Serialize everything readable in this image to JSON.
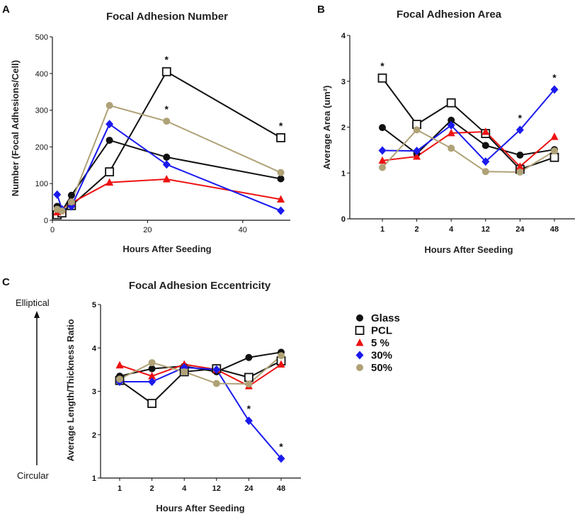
{
  "colors": {
    "Glass": "#111111",
    "PCL": "#111111",
    "5 %": "#ee1111",
    "30%": "#1a1aee",
    "50%": "#b0a277"
  },
  "legend": {
    "items": [
      "Glass",
      "PCL",
      "5 %",
      "30%",
      "50%"
    ]
  },
  "side_labels": {
    "top": "Elliptical",
    "bottom": "Circular"
  },
  "chart_data": [
    {
      "panel": "A",
      "type": "line",
      "title": "Focal Adhesion Number",
      "xlabel": "Hours After Seeding",
      "ylabel": "Number (Focal Adhesions/Cell)",
      "xlim": [
        0,
        50
      ],
      "ylim": [
        0,
        500
      ],
      "xticks": [
        "0",
        "20",
        "40"
      ],
      "yticks": [
        "0",
        "100",
        "200",
        "300",
        "400",
        "500"
      ],
      "series": [
        {
          "name": "Glass",
          "x": [
            1,
            2,
            4,
            12,
            24,
            48
          ],
          "values": [
            38,
            25,
            68,
            218,
            172,
            113
          ]
        },
        {
          "name": "PCL",
          "x": [
            1,
            2,
            4,
            12,
            24,
            48
          ],
          "values": [
            15,
            20,
            40,
            132,
            405,
            225
          ]
        },
        {
          "name": "5 %",
          "x": [
            1,
            2,
            4,
            12,
            24,
            48
          ],
          "values": [
            22,
            30,
            47,
            103,
            112,
            57
          ]
        },
        {
          "name": "30%",
          "x": [
            1,
            2,
            4,
            12,
            24,
            48
          ],
          "values": [
            70,
            30,
            38,
            262,
            152,
            26
          ]
        },
        {
          "name": "50%",
          "x": [
            1,
            2,
            4,
            12,
            24,
            48
          ],
          "values": [
            30,
            25,
            50,
            313,
            270,
            130
          ]
        }
      ],
      "annotations": [
        {
          "text": "*",
          "x": 24,
          "y": 405
        },
        {
          "text": "*",
          "x": 24,
          "y": 270
        },
        {
          "text": "*",
          "x": 48,
          "y": 225
        }
      ]
    },
    {
      "panel": "B",
      "type": "line",
      "title": "Focal Adhesion Area",
      "xlabel": "Hours After Seeding",
      "ylabel": "Average Area (um²)",
      "categories": [
        "1",
        "2",
        "4",
        "12",
        "24",
        "48"
      ],
      "ylim": [
        0,
        4
      ],
      "yticks": [
        "0",
        "1",
        "2",
        "3",
        "4"
      ],
      "series": [
        {
          "name": "Glass",
          "values": [
            1.99,
            1.42,
            2.15,
            1.6,
            1.39,
            1.51
          ]
        },
        {
          "name": "PCL",
          "values": [
            3.07,
            2.06,
            2.53,
            1.86,
            1.08,
            1.34
          ]
        },
        {
          "name": "5 %",
          "values": [
            1.27,
            1.36,
            1.87,
            1.9,
            1.14,
            1.79
          ]
        },
        {
          "name": "30%",
          "values": [
            1.49,
            1.48,
            2.04,
            1.25,
            1.94,
            2.82
          ]
        },
        {
          "name": "50%",
          "values": [
            1.12,
            1.94,
            1.54,
            1.03,
            1.02,
            1.48
          ]
        }
      ],
      "annotations": [
        {
          "text": "*",
          "category": "1",
          "y": 3.07
        },
        {
          "text": "*",
          "category": "24",
          "y": 1.94
        },
        {
          "text": "*",
          "category": "48",
          "y": 2.82
        }
      ]
    },
    {
      "panel": "C",
      "type": "line",
      "title": "Focal Adhesion Eccentricity",
      "xlabel": "Hours After Seeding",
      "ylabel": "Average Length/Thickness Ratio",
      "categories": [
        "1",
        "2",
        "4",
        "12",
        "24",
        "48"
      ],
      "ylim": [
        1,
        5
      ],
      "yticks": [
        "1",
        "2",
        "3",
        "4",
        "5"
      ],
      "series": [
        {
          "name": "Glass",
          "values": [
            3.35,
            3.52,
            3.58,
            3.45,
            3.78,
            3.9
          ]
        },
        {
          "name": "PCL",
          "values": [
            3.25,
            2.72,
            3.45,
            3.52,
            3.32,
            3.7
          ]
        },
        {
          "name": "5 %",
          "values": [
            3.6,
            3.35,
            3.62,
            3.5,
            3.12,
            3.62
          ]
        },
        {
          "name": "30%",
          "values": [
            3.22,
            3.22,
            3.55,
            3.5,
            2.32,
            1.45
          ]
        },
        {
          "name": "50%",
          "values": [
            3.28,
            3.66,
            3.45,
            3.18,
            3.17,
            3.82
          ]
        }
      ],
      "annotations": [
        {
          "text": "*",
          "category": "24",
          "y": 2.32
        },
        {
          "text": "*",
          "category": "48",
          "y": 1.45
        }
      ]
    }
  ]
}
